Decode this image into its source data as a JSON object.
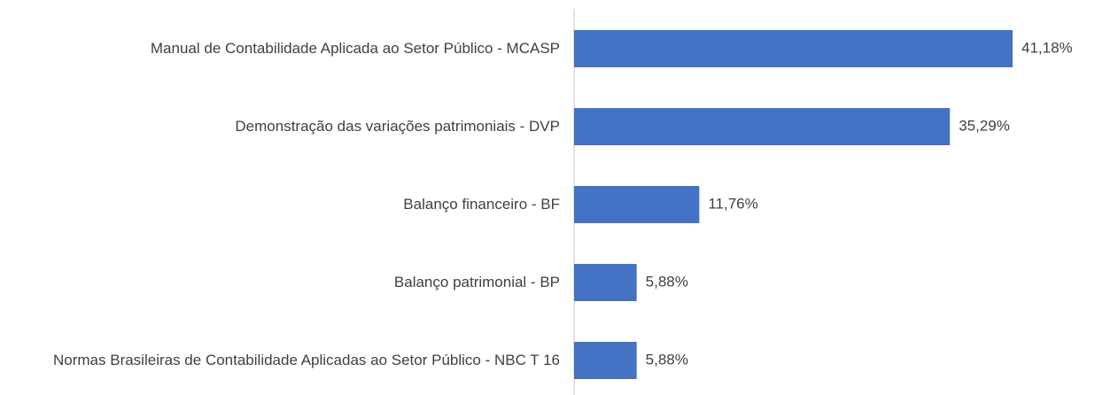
{
  "chart_data": {
    "type": "barh",
    "categories": [
      "Manual de Contabilidade Aplicada ao Setor Público - MCASP",
      "Demonstração das variações patrimoniais - DVP",
      "Balanço financeiro - BF",
      "Balanço patrimonial - BP",
      "Normas Brasileiras de Contabilidade Aplicadas ao Setor Público - NBC T 16"
    ],
    "values": [
      41.18,
      35.29,
      11.76,
      5.88,
      5.88
    ],
    "value_labels": [
      "41,18%",
      "35,29%",
      "11,76%",
      "5,88%",
      "5,88%"
    ],
    "color": "#4472c4"
  }
}
